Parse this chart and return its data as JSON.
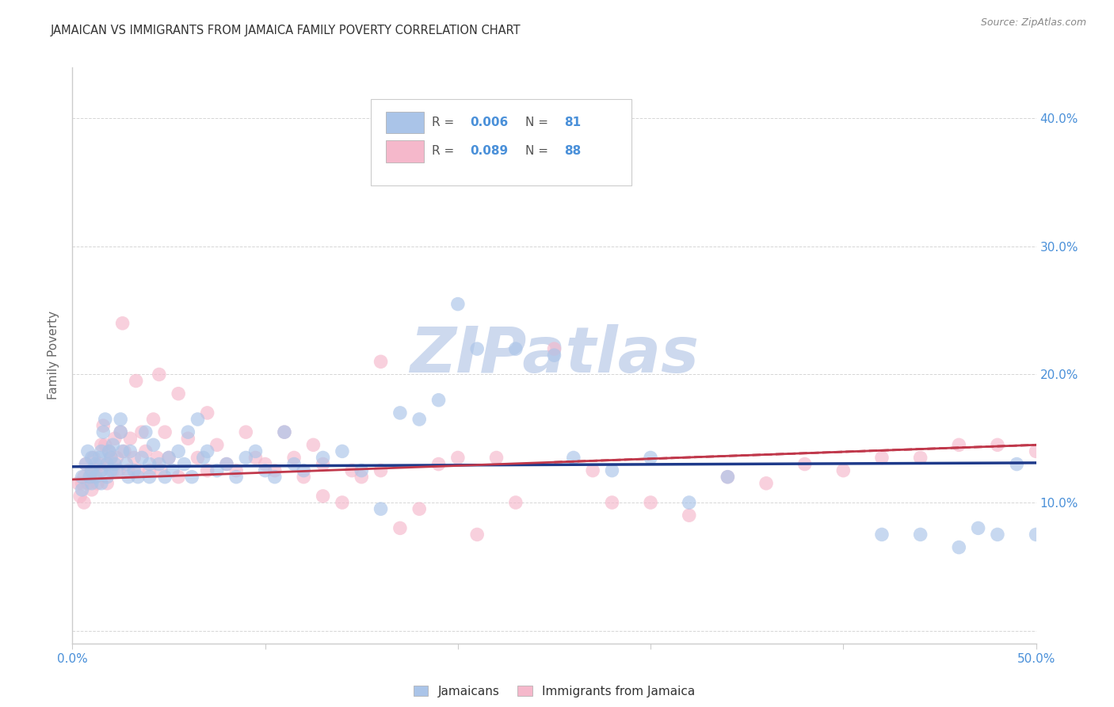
{
  "title": "JAMAICAN VS IMMIGRANTS FROM JAMAICA FAMILY POVERTY CORRELATION CHART",
  "source": "Source: ZipAtlas.com",
  "ylabel": "Family Poverty",
  "xlim": [
    0.0,
    0.5
  ],
  "ylim": [
    -0.01,
    0.44
  ],
  "x_ticks": [
    0.0,
    0.1,
    0.2,
    0.3,
    0.4,
    0.5
  ],
  "x_tick_labels": [
    "0.0%",
    "",
    "",
    "",
    "",
    "50.0%"
  ],
  "y_ticks": [
    0.0,
    0.1,
    0.2,
    0.3,
    0.4
  ],
  "y_tick_labels_right": [
    "",
    "10.0%",
    "20.0%",
    "30.0%",
    "40.0%"
  ],
  "blue_scatter_color": "#aac4e8",
  "pink_scatter_color": "#f5b8cb",
  "blue_line_color": "#1e3a8a",
  "pink_line_color": "#c0384b",
  "watermark_color": "#cdd9ee",
  "grid_color": "#cccccc",
  "tick_color": "#4a90d9",
  "legend_text_color": "#4a90d9",
  "blue_x": [
    0.005,
    0.005,
    0.007,
    0.008,
    0.009,
    0.01,
    0.01,
    0.01,
    0.012,
    0.012,
    0.014,
    0.015,
    0.015,
    0.015,
    0.016,
    0.017,
    0.018,
    0.018,
    0.019,
    0.02,
    0.02,
    0.021,
    0.022,
    0.023,
    0.025,
    0.025,
    0.026,
    0.028,
    0.029,
    0.03,
    0.032,
    0.034,
    0.036,
    0.038,
    0.04,
    0.04,
    0.042,
    0.045,
    0.048,
    0.05,
    0.052,
    0.055,
    0.058,
    0.06,
    0.062,
    0.065,
    0.068,
    0.07,
    0.075,
    0.08,
    0.085,
    0.09,
    0.095,
    0.1,
    0.105,
    0.11,
    0.115,
    0.12,
    0.13,
    0.14,
    0.15,
    0.16,
    0.18,
    0.19,
    0.21,
    0.23,
    0.25,
    0.26,
    0.28,
    0.3,
    0.32,
    0.34,
    0.2,
    0.42,
    0.44,
    0.46,
    0.47,
    0.48,
    0.49,
    0.5,
    0.17
  ],
  "blue_y": [
    0.12,
    0.11,
    0.13,
    0.14,
    0.12,
    0.135,
    0.125,
    0.115,
    0.13,
    0.12,
    0.135,
    0.14,
    0.125,
    0.115,
    0.155,
    0.165,
    0.13,
    0.12,
    0.14,
    0.135,
    0.125,
    0.145,
    0.13,
    0.125,
    0.165,
    0.155,
    0.14,
    0.13,
    0.12,
    0.14,
    0.125,
    0.12,
    0.135,
    0.155,
    0.13,
    0.12,
    0.145,
    0.13,
    0.12,
    0.135,
    0.125,
    0.14,
    0.13,
    0.155,
    0.12,
    0.165,
    0.135,
    0.14,
    0.125,
    0.13,
    0.12,
    0.135,
    0.14,
    0.125,
    0.12,
    0.155,
    0.13,
    0.125,
    0.135,
    0.14,
    0.125,
    0.095,
    0.165,
    0.18,
    0.22,
    0.22,
    0.215,
    0.135,
    0.125,
    0.135,
    0.1,
    0.12,
    0.255,
    0.075,
    0.075,
    0.065,
    0.08,
    0.075,
    0.13,
    0.075,
    0.17
  ],
  "pink_x": [
    0.003,
    0.004,
    0.005,
    0.006,
    0.006,
    0.007,
    0.008,
    0.009,
    0.01,
    0.01,
    0.011,
    0.012,
    0.013,
    0.014,
    0.015,
    0.015,
    0.016,
    0.017,
    0.018,
    0.018,
    0.019,
    0.02,
    0.021,
    0.022,
    0.023,
    0.024,
    0.025,
    0.027,
    0.029,
    0.03,
    0.032,
    0.034,
    0.036,
    0.038,
    0.04,
    0.042,
    0.044,
    0.046,
    0.048,
    0.05,
    0.055,
    0.06,
    0.065,
    0.07,
    0.075,
    0.08,
    0.085,
    0.09,
    0.1,
    0.105,
    0.11,
    0.115,
    0.12,
    0.125,
    0.13,
    0.14,
    0.15,
    0.16,
    0.17,
    0.18,
    0.19,
    0.2,
    0.21,
    0.22,
    0.23,
    0.25,
    0.27,
    0.28,
    0.3,
    0.32,
    0.34,
    0.36,
    0.38,
    0.4,
    0.42,
    0.44,
    0.46,
    0.48,
    0.5,
    0.16,
    0.026,
    0.033,
    0.045,
    0.055,
    0.07,
    0.095,
    0.13,
    0.145
  ],
  "pink_y": [
    0.115,
    0.105,
    0.115,
    0.12,
    0.1,
    0.13,
    0.115,
    0.12,
    0.125,
    0.11,
    0.135,
    0.125,
    0.115,
    0.13,
    0.145,
    0.125,
    0.16,
    0.145,
    0.13,
    0.115,
    0.14,
    0.135,
    0.125,
    0.15,
    0.135,
    0.125,
    0.155,
    0.14,
    0.125,
    0.15,
    0.135,
    0.125,
    0.155,
    0.14,
    0.125,
    0.165,
    0.135,
    0.125,
    0.155,
    0.135,
    0.12,
    0.15,
    0.135,
    0.125,
    0.145,
    0.13,
    0.125,
    0.155,
    0.13,
    0.125,
    0.155,
    0.135,
    0.12,
    0.145,
    0.13,
    0.1,
    0.12,
    0.125,
    0.08,
    0.095,
    0.13,
    0.135,
    0.075,
    0.135,
    0.1,
    0.22,
    0.125,
    0.1,
    0.1,
    0.09,
    0.12,
    0.115,
    0.13,
    0.125,
    0.135,
    0.135,
    0.145,
    0.145,
    0.14,
    0.21,
    0.24,
    0.195,
    0.2,
    0.185,
    0.17,
    0.135,
    0.105,
    0.125
  ]
}
